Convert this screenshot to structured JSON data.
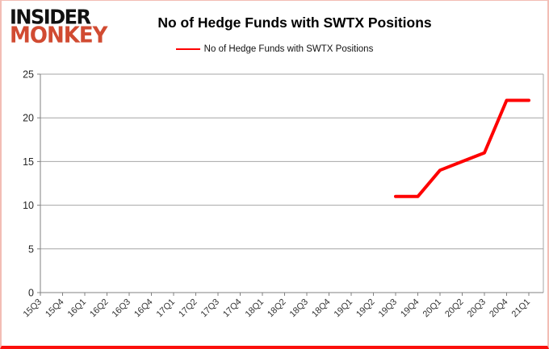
{
  "logo": {
    "line1": "INSIDER",
    "line2": "MONKEY",
    "line2_color": "#d14b32"
  },
  "header": {
    "title": "No of Hedge Funds with SWTX Positions"
  },
  "legend": {
    "label": "No of Hedge Funds with SWTX Positions"
  },
  "chart_data": {
    "type": "line",
    "title": "No of Hedge Funds with SWTX Positions",
    "categories": [
      "15Q3",
      "15Q4",
      "16Q1",
      "16Q2",
      "16Q3",
      "16Q4",
      "17Q1",
      "17Q2",
      "17Q3",
      "17Q4",
      "18Q1",
      "18Q2",
      "18Q3",
      "18Q4",
      "19Q1",
      "19Q2",
      "19Q3",
      "19Q4",
      "20Q1",
      "20Q2",
      "20Q3",
      "20Q4",
      "21Q1"
    ],
    "series": [
      {
        "name": "No of Hedge Funds with SWTX Positions",
        "color": "#fe0101",
        "values": [
          null,
          null,
          null,
          null,
          null,
          null,
          null,
          null,
          null,
          null,
          null,
          null,
          null,
          null,
          null,
          null,
          11,
          11,
          14,
          15,
          16,
          22,
          22
        ]
      }
    ],
    "xlabel": "",
    "ylabel": "",
    "ylim": [
      0,
      25
    ],
    "ytick_step": 5,
    "grid": true,
    "legend_position": "top",
    "x_label_rotation": -45
  },
  "colors": {
    "axis": "#808080",
    "gridline": "#a6a6a6",
    "plot_border": "#a6a6a6"
  }
}
